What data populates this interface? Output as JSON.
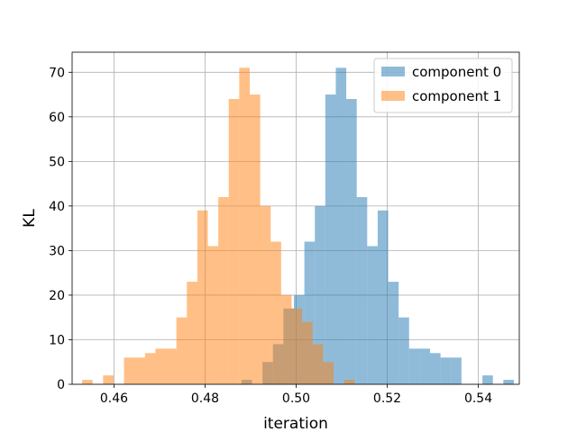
{
  "chart_data": {
    "type": "bar",
    "title": "",
    "xlabel": "iteration",
    "ylabel": "KL",
    "xlim": [
      0.4508,
      0.549
    ],
    "ylim": [
      0,
      74.5
    ],
    "x_ticks": [
      "0.46",
      "0.48",
      "0.50",
      "0.52",
      "0.54"
    ],
    "y_ticks": [
      "0",
      "10",
      "20",
      "30",
      "40",
      "50",
      "60",
      "70"
    ],
    "grid": true,
    "legend_position": "top-right",
    "series": [
      {
        "name": "component 0",
        "color": "#1f77b4",
        "opacity": 0.5,
        "bins": [
          {
            "x0": 0.488,
            "x1": 0.4903,
            "v": 1
          },
          {
            "x0": 0.4926,
            "x1": 0.4949,
            "v": 5
          },
          {
            "x0": 0.4949,
            "x1": 0.4972,
            "v": 9
          },
          {
            "x0": 0.4972,
            "x1": 0.4995,
            "v": 17
          },
          {
            "x0": 0.4995,
            "x1": 0.5018,
            "v": 20
          },
          {
            "x0": 0.5018,
            "x1": 0.5041,
            "v": 32
          },
          {
            "x0": 0.5041,
            "x1": 0.5064,
            "v": 40
          },
          {
            "x0": 0.5064,
            "x1": 0.5087,
            "v": 65
          },
          {
            "x0": 0.5087,
            "x1": 0.511,
            "v": 71
          },
          {
            "x0": 0.511,
            "x1": 0.5133,
            "v": 64
          },
          {
            "x0": 0.5133,
            "x1": 0.5156,
            "v": 42
          },
          {
            "x0": 0.5156,
            "x1": 0.5179,
            "v": 31
          },
          {
            "x0": 0.5179,
            "x1": 0.5202,
            "v": 39
          },
          {
            "x0": 0.5202,
            "x1": 0.5225,
            "v": 23
          },
          {
            "x0": 0.5225,
            "x1": 0.5248,
            "v": 15
          },
          {
            "x0": 0.5248,
            "x1": 0.5271,
            "v": 8
          },
          {
            "x0": 0.5271,
            "x1": 0.5294,
            "v": 8
          },
          {
            "x0": 0.5294,
            "x1": 0.5317,
            "v": 7
          },
          {
            "x0": 0.5317,
            "x1": 0.534,
            "v": 6
          },
          {
            "x0": 0.534,
            "x1": 0.5363,
            "v": 6
          },
          {
            "x0": 0.5409,
            "x1": 0.5432,
            "v": 2
          },
          {
            "x0": 0.5455,
            "x1": 0.5478,
            "v": 1
          }
        ]
      },
      {
        "name": "component 1",
        "color": "#ff7f0e",
        "opacity": 0.5,
        "bins": [
          {
            "x0": 0.453,
            "x1": 0.4553,
            "v": 1
          },
          {
            "x0": 0.4576,
            "x1": 0.4599,
            "v": 2
          },
          {
            "x0": 0.4622,
            "x1": 0.4645,
            "v": 6
          },
          {
            "x0": 0.4645,
            "x1": 0.4668,
            "v": 6
          },
          {
            "x0": 0.4668,
            "x1": 0.4691,
            "v": 7
          },
          {
            "x0": 0.4691,
            "x1": 0.4714,
            "v": 8
          },
          {
            "x0": 0.4714,
            "x1": 0.4737,
            "v": 8
          },
          {
            "x0": 0.4737,
            "x1": 0.476,
            "v": 15
          },
          {
            "x0": 0.476,
            "x1": 0.4783,
            "v": 23
          },
          {
            "x0": 0.4783,
            "x1": 0.4806,
            "v": 39
          },
          {
            "x0": 0.4806,
            "x1": 0.4829,
            "v": 31
          },
          {
            "x0": 0.4829,
            "x1": 0.4852,
            "v": 42
          },
          {
            "x0": 0.4852,
            "x1": 0.4875,
            "v": 64
          },
          {
            "x0": 0.4875,
            "x1": 0.4898,
            "v": 71
          },
          {
            "x0": 0.4898,
            "x1": 0.4921,
            "v": 65
          },
          {
            "x0": 0.4921,
            "x1": 0.4944,
            "v": 40
          },
          {
            "x0": 0.4944,
            "x1": 0.4967,
            "v": 32
          },
          {
            "x0": 0.4967,
            "x1": 0.499,
            "v": 20
          },
          {
            "x0": 0.499,
            "x1": 0.5013,
            "v": 17
          },
          {
            "x0": 0.5013,
            "x1": 0.5036,
            "v": 14
          },
          {
            "x0": 0.5036,
            "x1": 0.5059,
            "v": 9
          },
          {
            "x0": 0.5059,
            "x1": 0.5082,
            "v": 5
          },
          {
            "x0": 0.5105,
            "x1": 0.5128,
            "v": 1
          }
        ]
      }
    ]
  }
}
